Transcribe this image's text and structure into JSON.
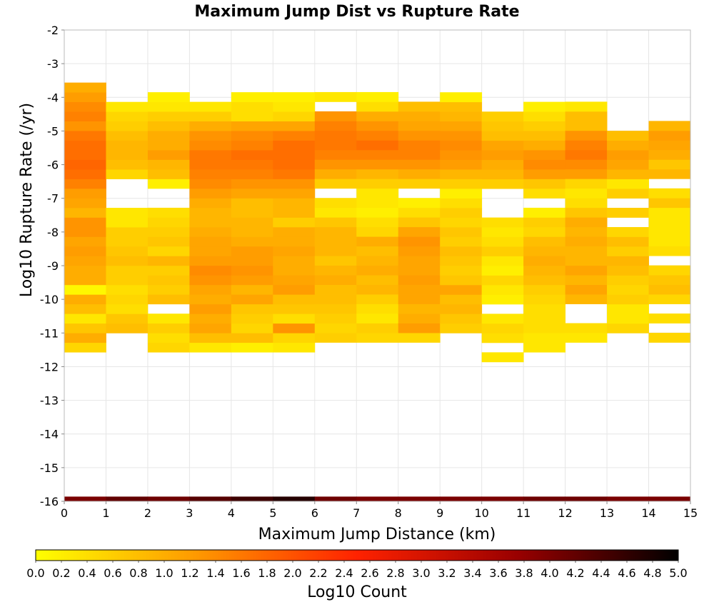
{
  "chart_data": {
    "type": "heatmap",
    "title": "Maximum Jump Dist vs Rupture Rate",
    "xlabel": "Maximum Jump Distance (km)",
    "ylabel": "Log10 Rupture Rate (/yr)",
    "xlim": [
      0,
      15
    ],
    "ylim": [
      -16,
      -2
    ],
    "xticks": [
      "0",
      "1",
      "2",
      "3",
      "4",
      "5",
      "6",
      "7",
      "8",
      "9",
      "10",
      "11",
      "12",
      "13",
      "14",
      "15"
    ],
    "yticks": [
      "-2",
      "-3",
      "-4",
      "-5",
      "-6",
      "-7",
      "-8",
      "-9",
      "-10",
      "-11",
      "-12",
      "-13",
      "-14",
      "-15",
      "-16"
    ],
    "x_bin_width": 1,
    "y_bin_height": 0.286,
    "grid": true,
    "colorbar": {
      "label": "Log10 Count",
      "min": 0.0,
      "max": 5.0,
      "ticks": [
        "0.0",
        "0.2",
        "0.4",
        "0.6",
        "0.8",
        "1.0",
        "1.2",
        "1.4",
        "1.6",
        "1.8",
        "2.0",
        "2.2",
        "2.4",
        "2.6",
        "2.8",
        "3.0",
        "3.2",
        "3.4",
        "3.6",
        "3.8",
        "4.0",
        "4.2",
        "4.4",
        "4.6",
        "4.8",
        "5.0"
      ],
      "colors": [
        "#ffff00",
        "#ff9900",
        "#ff2200",
        "#990000",
        "#000000"
      ]
    },
    "columns": [
      {
        "x": 0,
        "y_start": -11.57,
        "y_end": -3.57,
        "values": [
          0.5,
          1.0,
          0.7,
          0.3,
          0.8,
          1.0,
          0.1,
          1.0,
          1.0,
          1.1,
          1.2,
          1.1,
          1.3,
          1.3,
          0.9,
          1.1,
          1.2,
          1.5,
          1.7,
          1.8,
          1.7,
          1.7,
          1.6,
          1.3,
          1.5,
          1.4,
          1.2,
          1.0
        ]
      },
      {
        "x": 1,
        "y_start": -11.0,
        "y_end": -4.15,
        "values": [
          0.8,
          0.7,
          0.4,
          0.5,
          0.4,
          0.6,
          0.6,
          0.8,
          0.7,
          0.6,
          0.6,
          0.3,
          0.3,
          null,
          null,
          null,
          0.5,
          0.8,
          0.9,
          0.9,
          0.8,
          0.6,
          0.5,
          0.3
        ]
      },
      {
        "x": 2,
        "y_start": -11.57,
        "y_end": -3.86,
        "values": [
          0.5,
          0.4,
          0.6,
          0.3,
          null,
          0.8,
          0.6,
          0.7,
          0.6,
          0.9,
          0.5,
          0.7,
          0.6,
          0.5,
          0.4,
          null,
          null,
          0.2,
          0.8,
          0.9,
          1.2,
          1.0,
          1.0,
          0.8,
          0.6,
          0.3,
          0.2
        ]
      },
      {
        "x": 3,
        "y_start": -11.57,
        "y_end": -4.15,
        "values": [
          0.3,
          0.8,
          1.1,
          1.0,
          1.2,
          1.0,
          1.1,
          1.3,
          1.4,
          1.2,
          1.1,
          1.1,
          1.0,
          0.9,
          0.9,
          1.0,
          1.2,
          1.4,
          1.5,
          1.6,
          1.6,
          1.4,
          1.3,
          1.0,
          0.6,
          0.3
        ]
      },
      {
        "x": 4,
        "y_start": -11.57,
        "y_end": -3.86,
        "values": [
          0.2,
          0.8,
          0.5,
          0.6,
          0.7,
          1.1,
          0.9,
          1.2,
          1.3,
          1.2,
          1.2,
          1.0,
          0.9,
          0.9,
          0.8,
          0.8,
          1.1,
          1.3,
          1.5,
          1.6,
          1.7,
          1.5,
          1.4,
          1.1,
          0.4,
          0.4,
          0.2
        ]
      },
      {
        "x": 5,
        "y_start": -11.57,
        "y_end": -3.86,
        "values": [
          0.3,
          0.5,
          1.3,
          0.4,
          0.7,
          0.8,
          1.2,
          1.1,
          1.0,
          1.0,
          1.1,
          1.0,
          1.0,
          0.6,
          0.9,
          0.9,
          1.1,
          1.3,
          1.6,
          1.7,
          1.7,
          1.7,
          1.5,
          1.1,
          0.5,
          0.3,
          0.2
        ]
      },
      {
        "x": 6,
        "y_start": -11.28,
        "y_end": -3.86,
        "values": [
          0.6,
          0.5,
          0.6,
          0.7,
          0.8,
          0.8,
          1.0,
          0.9,
          0.7,
          0.9,
          0.9,
          0.9,
          0.7,
          0.3,
          0.4,
          null,
          0.6,
          1.0,
          1.3,
          1.5,
          1.6,
          1.6,
          1.5,
          1.3,
          null,
          0.3
        ]
      },
      {
        "x": 7,
        "y_start": -11.28,
        "y_end": -3.86,
        "values": [
          0.5,
          0.6,
          0.3,
          0.4,
          0.6,
          0.9,
          0.8,
          1.0,
          0.9,
          0.8,
          1.0,
          0.5,
          0.4,
          0.2,
          0.3,
          0.3,
          0.6,
          0.9,
          1.3,
          1.5,
          1.7,
          1.5,
          1.3,
          1.0,
          0.4,
          0.2
        ]
      },
      {
        "x": 8,
        "y_start": -11.28,
        "y_end": -4.43,
        "values": [
          0.5,
          1.2,
          1.0,
          0.9,
          1.1,
          1.1,
          1.2,
          1.1,
          1.1,
          1.2,
          1.3,
          1.1,
          0.7,
          0.4,
          0.2,
          null,
          0.6,
          1.0,
          1.3,
          1.5,
          1.5,
          1.3,
          1.1,
          1.0,
          0.8
        ]
      },
      {
        "x": 9,
        "y_start": -11.0,
        "y_end": -3.86,
        "values": [
          0.6,
          0.7,
          0.9,
          0.8,
          1.1,
          0.7,
          0.6,
          0.7,
          0.8,
          0.6,
          0.7,
          0.5,
          0.6,
          0.4,
          0.2,
          0.6,
          0.9,
          1.2,
          1.3,
          1.4,
          1.3,
          1.1,
          0.9,
          0.8,
          0.2
        ]
      },
      {
        "x": 10,
        "y_start": -11.86,
        "y_end": -4.43,
        "values": [
          0.3,
          null,
          0.4,
          0.5,
          0.3,
          null,
          0.2,
          0.3,
          0.5,
          0.2,
          0.3,
          0.6,
          0.4,
          0.3,
          0.4,
          null,
          null,
          null,
          0.6,
          0.9,
          1.0,
          1.2,
          1.1,
          0.8,
          0.7,
          0.6
        ]
      },
      {
        "x": 11,
        "y_start": -11.57,
        "y_end": -4.15,
        "values": [
          0.3,
          0.3,
          0.4,
          0.4,
          0.4,
          0.5,
          0.6,
          0.8,
          0.9,
          1.0,
          0.9,
          0.8,
          0.5,
          0.6,
          0.2,
          null,
          0.4,
          0.7,
          1.2,
          1.4,
          1.3,
          1.0,
          0.8,
          0.6,
          0.4,
          0.2
        ]
      },
      {
        "x": 12,
        "y_start": -11.28,
        "y_end": -3.86,
        "values": [
          0.3,
          0.4,
          null,
          null,
          0.9,
          1.1,
          0.9,
          1.1,
          0.9,
          0.9,
          1.0,
          0.9,
          1.0,
          0.7,
          0.4,
          0.3,
          0.5,
          1.2,
          1.4,
          1.6,
          1.5,
          1.3,
          0.8,
          0.8,
          0.3
        ]
      },
      {
        "x": 13,
        "y_start": -11.0,
        "y_end": -4.72,
        "values": [
          0.5,
          0.3,
          0.3,
          0.6,
          0.5,
          0.6,
          0.8,
          0.9,
          0.6,
          0.8,
          0.5,
          null,
          0.6,
          null,
          0.6,
          0.3,
          0.9,
          1.1,
          1.2,
          1.0,
          0.8
        ]
      },
      {
        "x": 14,
        "y_start": -11.28,
        "y_end": -4.72,
        "values": [
          0.5,
          null,
          0.4,
          null,
          0.5,
          0.8,
          0.7,
          0.5,
          null,
          0.4,
          0.3,
          0.3,
          0.3,
          0.3,
          0.7,
          0.4,
          null,
          0.9,
          0.7,
          1.0,
          1.1,
          1.2,
          0.9
        ]
      }
    ],
    "bottom_strip": {
      "y_start": -16.0,
      "y_end": -15.86,
      "values": [
        4.0,
        4.2,
        4.1,
        4.3,
        4.5,
        4.7,
        4.1,
        4.0,
        4.0,
        4.0,
        4.0,
        4.1,
        4.1,
        4.0,
        4.0
      ]
    }
  }
}
